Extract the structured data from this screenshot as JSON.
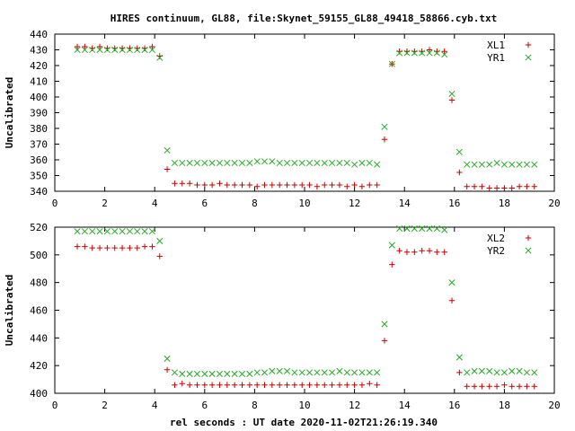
{
  "title": "HIRES continuum, GL88, file:Skynet_59155_GL88_49418_58866.cyb.txt",
  "xlabel": "rel seconds : UT date 2020-11-02T21:26:19.340",
  "colors": {
    "red": "#cc0000",
    "green": "#22aa22",
    "axis": "#000000"
  },
  "chart_data": [
    {
      "type": "scatter",
      "ylabel": "Uncalibrated",
      "xlim": [
        0,
        20
      ],
      "ylim": [
        340,
        440
      ],
      "xticks": [
        0,
        2,
        4,
        6,
        8,
        10,
        12,
        14,
        16,
        18,
        20
      ],
      "yticks": [
        340,
        350,
        360,
        370,
        380,
        390,
        400,
        410,
        420,
        430,
        440
      ],
      "legend_position": "top-right",
      "series": [
        {
          "name": "XL1",
          "marker": "plus",
          "color": "#cc0000",
          "x": [
            0.9,
            1.2,
            1.5,
            1.8,
            2.1,
            2.4,
            2.7,
            3.0,
            3.3,
            3.6,
            3.9,
            4.2,
            4.5,
            4.8,
            5.1,
            5.4,
            5.7,
            6.0,
            6.3,
            6.6,
            6.9,
            7.2,
            7.5,
            7.8,
            8.1,
            8.4,
            8.7,
            9.0,
            9.3,
            9.6,
            9.9,
            10.2,
            10.5,
            10.8,
            11.1,
            11.4,
            11.7,
            12.0,
            12.3,
            12.6,
            12.9,
            13.2,
            13.5,
            13.8,
            14.1,
            14.4,
            14.7,
            15.0,
            15.3,
            15.6,
            15.9,
            16.2,
            16.5,
            16.8,
            17.1,
            17.4,
            17.7,
            18.0,
            18.3,
            18.6,
            18.9,
            19.2
          ],
          "y": [
            432,
            432,
            431,
            432,
            431,
            431,
            431,
            431,
            431,
            431,
            432,
            426,
            354,
            345,
            345,
            345,
            344,
            344,
            344,
            345,
            344,
            344,
            344,
            344,
            343,
            344,
            344,
            344,
            344,
            344,
            344,
            344,
            343,
            344,
            344,
            344,
            343,
            344,
            343,
            344,
            344,
            373,
            421,
            429,
            429,
            429,
            429,
            430,
            429,
            429,
            398,
            352,
            343,
            343,
            343,
            342,
            342,
            342,
            342,
            343,
            343,
            343
          ]
        },
        {
          "name": "YR1",
          "marker": "cross",
          "color": "#22aa22",
          "x": [
            0.9,
            1.2,
            1.5,
            1.8,
            2.1,
            2.4,
            2.7,
            3.0,
            3.3,
            3.6,
            3.9,
            4.2,
            4.5,
            4.8,
            5.1,
            5.4,
            5.7,
            6.0,
            6.3,
            6.6,
            6.9,
            7.2,
            7.5,
            7.8,
            8.1,
            8.4,
            8.7,
            9.0,
            9.3,
            9.6,
            9.9,
            10.2,
            10.5,
            10.8,
            11.1,
            11.4,
            11.7,
            12.0,
            12.3,
            12.6,
            12.9,
            13.2,
            13.5,
            13.8,
            14.1,
            14.4,
            14.7,
            15.0,
            15.3,
            15.6,
            15.9,
            16.2,
            16.5,
            16.8,
            17.1,
            17.4,
            17.7,
            18.0,
            18.3,
            18.6,
            18.9,
            19.2
          ],
          "y": [
            430,
            430,
            430,
            430,
            430,
            430,
            430,
            430,
            430,
            430,
            430,
            425,
            366,
            358,
            358,
            358,
            358,
            358,
            358,
            358,
            358,
            358,
            358,
            358,
            359,
            359,
            359,
            358,
            358,
            358,
            358,
            358,
            358,
            358,
            358,
            358,
            358,
            357,
            358,
            358,
            357,
            381,
            421,
            428,
            428,
            428,
            428,
            428,
            428,
            427,
            402,
            365,
            357,
            357,
            357,
            357,
            358,
            357,
            357,
            357,
            357,
            357
          ]
        }
      ]
    },
    {
      "type": "scatter",
      "ylabel": "Uncalibrated",
      "xlim": [
        0,
        20
      ],
      "ylim": [
        400,
        520
      ],
      "xticks": [
        0,
        2,
        4,
        6,
        8,
        10,
        12,
        14,
        16,
        18,
        20
      ],
      "yticks": [
        400,
        420,
        440,
        460,
        480,
        500,
        520
      ],
      "legend_position": "top-right",
      "series": [
        {
          "name": "XL2",
          "marker": "plus",
          "color": "#cc0000",
          "x": [
            0.9,
            1.2,
            1.5,
            1.8,
            2.1,
            2.4,
            2.7,
            3.0,
            3.3,
            3.6,
            3.9,
            4.2,
            4.5,
            4.8,
            5.1,
            5.4,
            5.7,
            6.0,
            6.3,
            6.6,
            6.9,
            7.2,
            7.5,
            7.8,
            8.1,
            8.4,
            8.7,
            9.0,
            9.3,
            9.6,
            9.9,
            10.2,
            10.5,
            10.8,
            11.1,
            11.4,
            11.7,
            12.0,
            12.3,
            12.6,
            12.9,
            13.2,
            13.5,
            13.8,
            14.1,
            14.4,
            14.7,
            15.0,
            15.3,
            15.6,
            15.9,
            16.2,
            16.5,
            16.8,
            17.1,
            17.4,
            17.7,
            18.0,
            18.3,
            18.6,
            18.9,
            19.2
          ],
          "y": [
            506,
            506,
            505,
            505,
            505,
            505,
            505,
            505,
            505,
            506,
            506,
            499,
            417,
            406,
            407,
            406,
            406,
            406,
            406,
            406,
            406,
            406,
            406,
            406,
            406,
            406,
            406,
            406,
            406,
            406,
            406,
            406,
            406,
            406,
            406,
            406,
            406,
            406,
            406,
            407,
            406,
            438,
            493,
            503,
            502,
            502,
            503,
            503,
            502,
            502,
            467,
            415,
            405,
            405,
            405,
            405,
            405,
            406,
            405,
            405,
            405,
            405
          ]
        },
        {
          "name": "YR2",
          "marker": "cross",
          "color": "#22aa22",
          "x": [
            0.9,
            1.2,
            1.5,
            1.8,
            2.1,
            2.4,
            2.7,
            3.0,
            3.3,
            3.6,
            3.9,
            4.2,
            4.5,
            4.8,
            5.1,
            5.4,
            5.7,
            6.0,
            6.3,
            6.6,
            6.9,
            7.2,
            7.5,
            7.8,
            8.1,
            8.4,
            8.7,
            9.0,
            9.3,
            9.6,
            9.9,
            10.2,
            10.5,
            10.8,
            11.1,
            11.4,
            11.7,
            12.0,
            12.3,
            12.6,
            12.9,
            13.2,
            13.5,
            13.8,
            14.1,
            14.4,
            14.7,
            15.0,
            15.3,
            15.6,
            15.9,
            16.2,
            16.5,
            16.8,
            17.1,
            17.4,
            17.7,
            18.0,
            18.3,
            18.6,
            18.9,
            19.2
          ],
          "y": [
            517,
            517,
            517,
            517,
            517,
            517,
            517,
            517,
            517,
            517,
            517,
            510,
            425,
            415,
            414,
            414,
            414,
            414,
            414,
            414,
            414,
            414,
            414,
            414,
            415,
            415,
            416,
            416,
            416,
            415,
            415,
            415,
            415,
            415,
            415,
            416,
            415,
            415,
            415,
            415,
            415,
            450,
            507,
            519,
            519,
            519,
            519,
            519,
            519,
            518,
            480,
            426,
            415,
            416,
            416,
            416,
            415,
            415,
            416,
            416,
            415,
            415
          ]
        }
      ]
    }
  ]
}
